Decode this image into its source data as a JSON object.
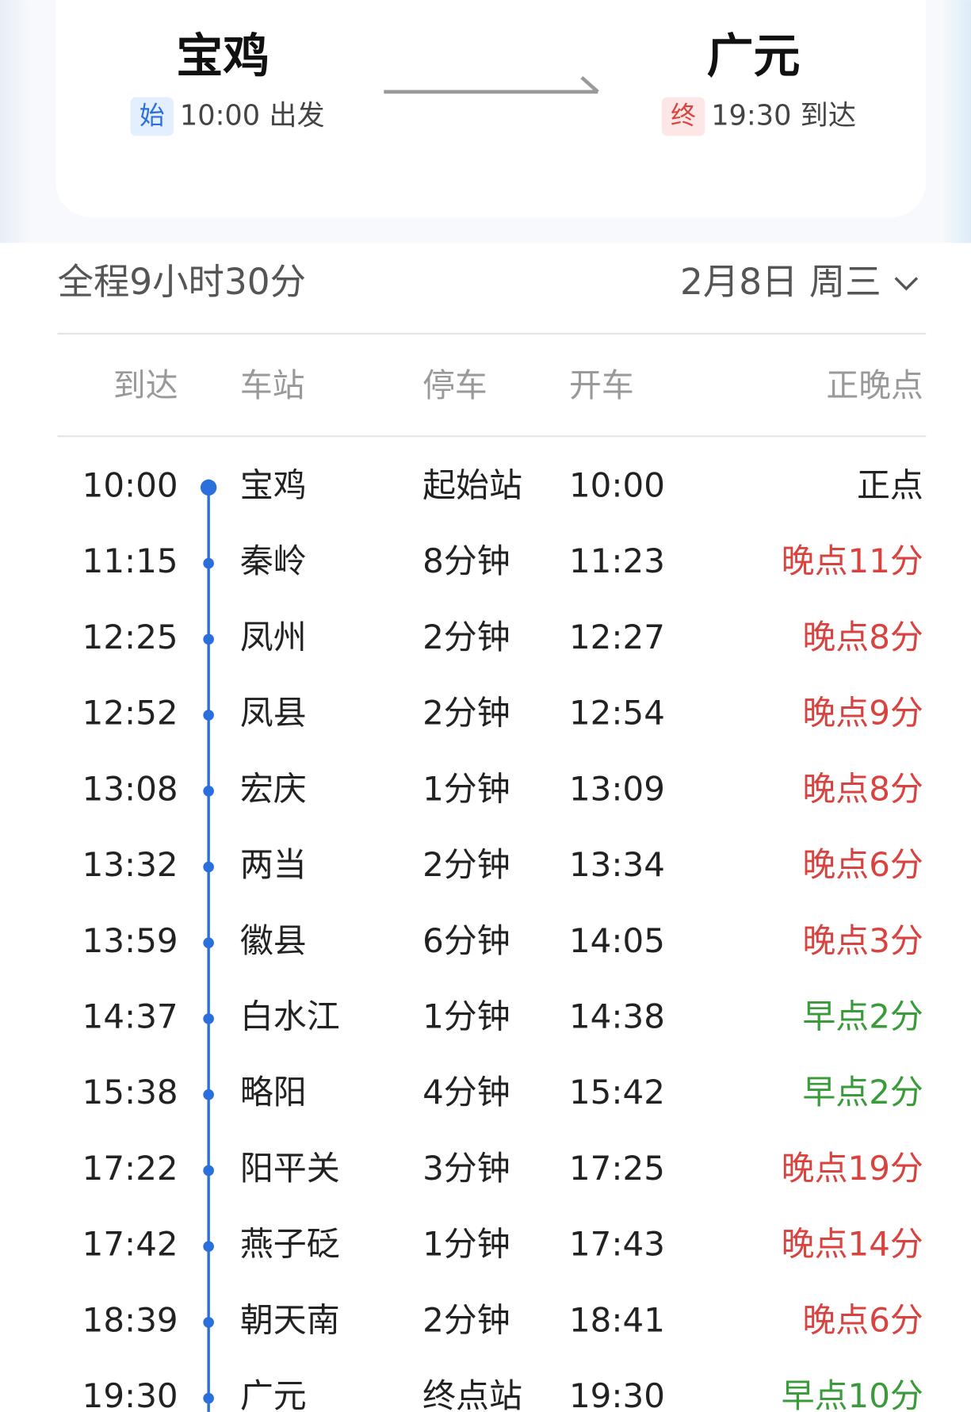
{
  "header": {
    "from": {
      "station": "宝鸡",
      "tag": "始",
      "time": "10:00 出发"
    },
    "to": {
      "station": "广元",
      "tag": "终",
      "time": "19:30 到达"
    }
  },
  "summary": {
    "duration": "全程9小时30分",
    "date": "2月8日 周三"
  },
  "table": {
    "columns": [
      "到达",
      "车站",
      "停车",
      "开车",
      "正晚点"
    ],
    "rows": [
      [
        "10:00",
        "宝鸡",
        "起始站",
        "10:00",
        "正点"
      ],
      [
        "11:15",
        "秦岭",
        "8分钟",
        "11:23",
        "晚点11分"
      ],
      [
        "12:25",
        "凤州",
        "2分钟",
        "12:27",
        "晚点8分"
      ],
      [
        "12:52",
        "凤县",
        "2分钟",
        "12:54",
        "晚点9分"
      ],
      [
        "13:08",
        "宏庆",
        "1分钟",
        "13:09",
        "晚点8分"
      ],
      [
        "13:32",
        "两当",
        "2分钟",
        "13:34",
        "晚点6分"
      ],
      [
        "13:59",
        "徽县",
        "6分钟",
        "14:05",
        "晚点3分"
      ],
      [
        "14:37",
        "白水江",
        "1分钟",
        "14:38",
        "早点2分"
      ],
      [
        "15:38",
        "略阳",
        "4分钟",
        "15:42",
        "早点2分"
      ],
      [
        "17:22",
        "阳平关",
        "3分钟",
        "17:25",
        "晚点19分"
      ],
      [
        "17:42",
        "燕子砭",
        "1分钟",
        "17:43",
        "晚点14分"
      ],
      [
        "18:39",
        "朝天南",
        "2分钟",
        "18:41",
        "晚点6分"
      ],
      [
        "19:30",
        "广元",
        "终点站",
        "19:30",
        "早点10分"
      ]
    ],
    "status_colors": [
      "#222222",
      "#d9433f",
      "#d9433f",
      "#d9433f",
      "#d9433f",
      "#d9433f",
      "#d9433f",
      "#3a9b3a",
      "#3a9b3a",
      "#d9433f",
      "#d9433f",
      "#d9433f",
      "#3a9b3a"
    ]
  }
}
